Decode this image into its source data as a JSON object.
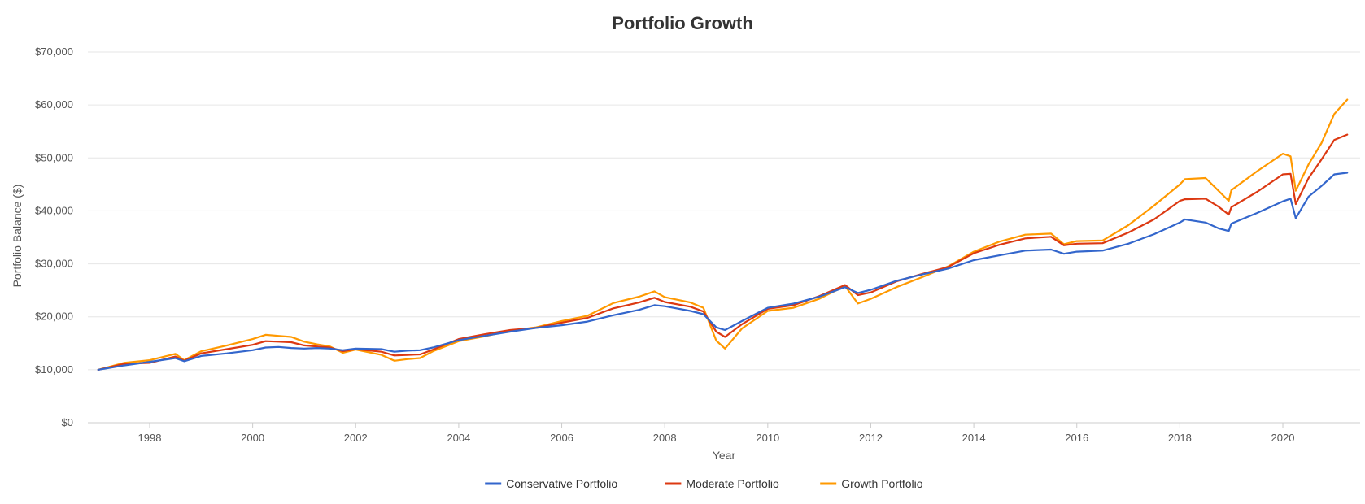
{
  "chart_data": {
    "type": "line",
    "title": "Portfolio Growth",
    "xlabel": "Year",
    "ylabel": "Portfolio Balance ($)",
    "xlim": [
      1996.8,
      2021.5
    ],
    "ylim": [
      0,
      70000
    ],
    "x_ticks": [
      1998,
      2000,
      2002,
      2004,
      2006,
      2008,
      2010,
      2012,
      2014,
      2016,
      2018,
      2020
    ],
    "x_tick_labels": [
      "1998",
      "2000",
      "2002",
      "2004",
      "2006",
      "2008",
      "2010",
      "2012",
      "2014",
      "2016",
      "2018",
      "2020"
    ],
    "y_ticks": [
      0,
      10000,
      20000,
      30000,
      40000,
      50000,
      60000,
      70000
    ],
    "y_tick_labels": [
      "$0",
      "$10,000",
      "$20,000",
      "$30,000",
      "$40,000",
      "$50,000",
      "$60,000",
      "$70,000"
    ],
    "grid": true,
    "legend_position": "bottom-center",
    "x": [
      1997.0,
      1997.5,
      1998.0,
      1998.5,
      1998.67,
      1999.0,
      1999.5,
      2000.0,
      2000.25,
      2000.5,
      2000.75,
      2001.0,
      2001.25,
      2001.5,
      2001.75,
      2002.0,
      2002.5,
      2002.75,
      2003.0,
      2003.25,
      2003.5,
      2004.0,
      2004.5,
      2005.0,
      2005.5,
      2006.0,
      2006.5,
      2007.0,
      2007.5,
      2007.8,
      2008.0,
      2008.5,
      2008.75,
      2009.0,
      2009.17,
      2009.5,
      2010.0,
      2010.5,
      2011.0,
      2011.5,
      2011.75,
      2012.0,
      2012.5,
      2013.0,
      2013.5,
      2014.0,
      2014.5,
      2015.0,
      2015.5,
      2015.75,
      2016.0,
      2016.5,
      2017.0,
      2017.5,
      2018.0,
      2018.1,
      2018.5,
      2018.75,
      2018.95,
      2019.0,
      2019.5,
      2020.0,
      2020.15,
      2020.25,
      2020.5,
      2020.75,
      2021.0,
      2021.25
    ],
    "series": [
      {
        "name": "Conservative Portfolio",
        "color": "#3366cc",
        "values": [
          10000,
          10800,
          11500,
          12200,
          11600,
          12600,
          13100,
          13700,
          14200,
          14300,
          14100,
          14000,
          14100,
          14000,
          13700,
          14000,
          13900,
          13400,
          13600,
          13700,
          14200,
          15600,
          16400,
          17200,
          17900,
          18400,
          19100,
          20300,
          21300,
          22200,
          22000,
          21100,
          20500,
          18000,
          17500,
          19200,
          21700,
          22500,
          23800,
          25600,
          24500,
          25100,
          26800,
          28000,
          29100,
          30700,
          31600,
          32500,
          32700,
          31900,
          32300,
          32500,
          33800,
          35600,
          37800,
          38400,
          37800,
          36700,
          36200,
          37600,
          39600,
          41800,
          42300,
          38600,
          42700,
          44700,
          46900,
          47200
        ]
      },
      {
        "name": "Moderate Portfolio",
        "color": "#dc3912",
        "values": [
          10000,
          11100,
          11300,
          12500,
          11700,
          13100,
          13900,
          14700,
          15400,
          15300,
          15200,
          14600,
          14400,
          14200,
          13500,
          13900,
          13400,
          12700,
          12800,
          12900,
          13800,
          15800,
          16700,
          17500,
          17900,
          18900,
          19800,
          21600,
          22700,
          23600,
          22800,
          21900,
          21000,
          17200,
          16200,
          18600,
          21500,
          22200,
          23900,
          26000,
          24100,
          24600,
          26700,
          28100,
          29400,
          32000,
          33600,
          34800,
          35100,
          33500,
          33800,
          33900,
          35900,
          38400,
          41900,
          42200,
          42300,
          40800,
          39300,
          40700,
          43600,
          46900,
          47000,
          41300,
          46200,
          49700,
          53400,
          54400
        ]
      },
      {
        "name": "Growth Portfolio",
        "color": "#ff9900",
        "values": [
          10000,
          11300,
          11800,
          13000,
          11800,
          13500,
          14600,
          15800,
          16600,
          16400,
          16200,
          15300,
          14800,
          14400,
          13200,
          13800,
          12800,
          11700,
          12000,
          12200,
          13500,
          15400,
          16300,
          17400,
          18000,
          19200,
          20200,
          22600,
          23800,
          24800,
          23700,
          22700,
          21700,
          15500,
          14000,
          17800,
          21100,
          21700,
          23400,
          25800,
          22500,
          23400,
          25600,
          27500,
          29500,
          32300,
          34200,
          35500,
          35700,
          33700,
          34300,
          34400,
          37300,
          41000,
          45000,
          46000,
          46200,
          43800,
          41900,
          43900,
          47500,
          50800,
          50300,
          43800,
          48800,
          52800,
          58300,
          61000
        ]
      }
    ]
  }
}
